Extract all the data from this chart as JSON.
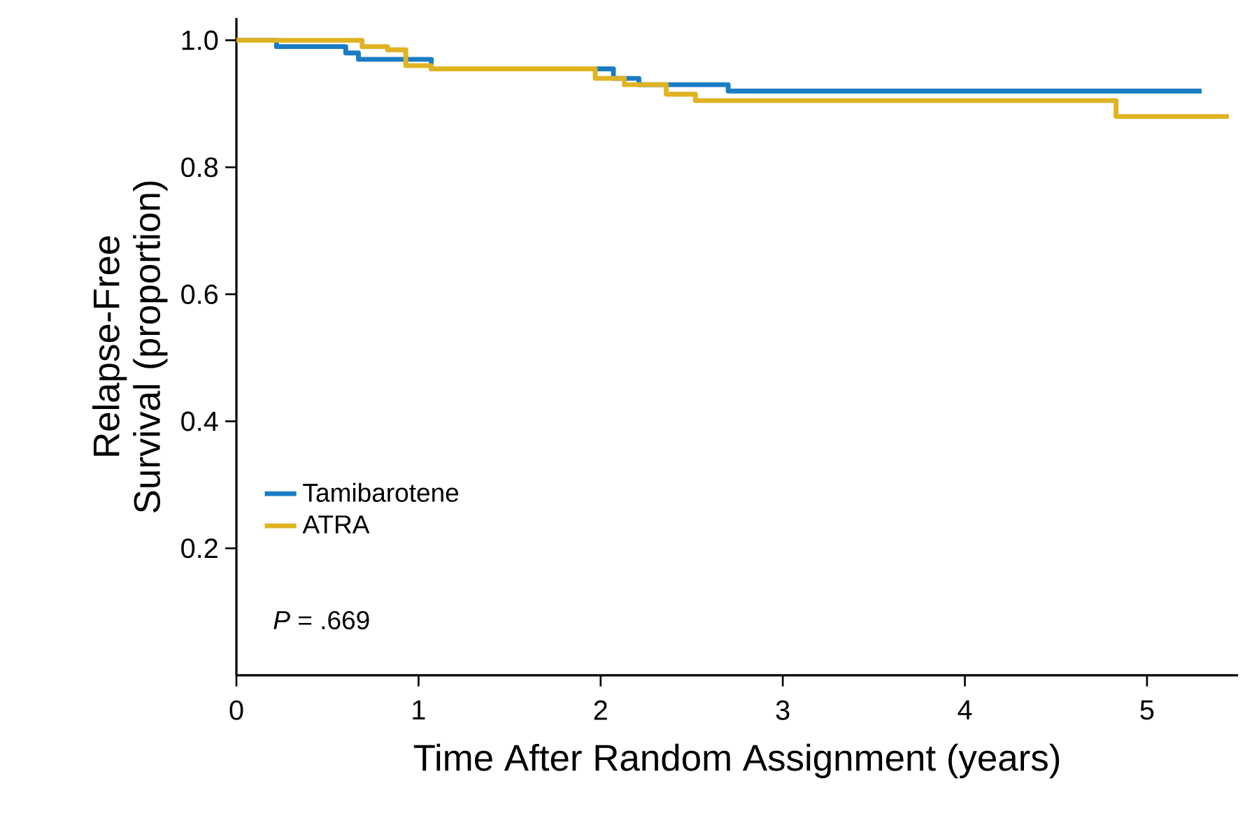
{
  "chart_data": {
    "type": "step",
    "xlabel": "Time After Random Assignment (years)",
    "ylabel": "Relapse-Free Survival (proportion)",
    "xlim": [
      0,
      5.5
    ],
    "ylim": [
      0,
      1.035
    ],
    "xticks": [
      0,
      1,
      2,
      3,
      4,
      5
    ],
    "yticks": [
      0.2,
      0.4,
      0.6,
      0.8,
      {
        "value": 1.0,
        "label": "1.0"
      }
    ],
    "series": [
      {
        "name": "Tamibarotene",
        "color": "#1a7cc4",
        "x": [
          0,
          0.22,
          0.6,
          0.67,
          1.07,
          2.07,
          2.21,
          2.7,
          5.3
        ],
        "values": [
          1.0,
          0.99,
          0.98,
          0.97,
          0.955,
          0.94,
          0.93,
          0.92,
          0.92
        ]
      },
      {
        "name": "ATRA",
        "color": "#e0b322",
        "x": [
          0,
          0.69,
          0.83,
          0.93,
          1.07,
          1.97,
          2.13,
          2.36,
          2.52,
          4.83,
          5.45
        ],
        "values": [
          1.0,
          0.99,
          0.985,
          0.96,
          0.955,
          0.94,
          0.93,
          0.915,
          0.905,
          0.88,
          0.88
        ]
      }
    ],
    "legend": "bottom left",
    "marker": "none",
    "line_style": "solid",
    "annotations": [
      "*P* = .669"
    ]
  }
}
